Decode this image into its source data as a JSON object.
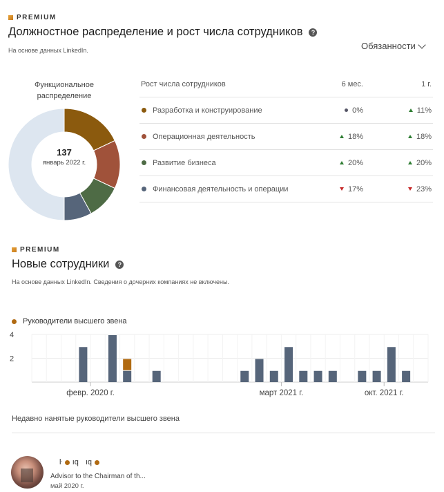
{
  "section1": {
    "premium_label": "PREMIUM",
    "title": "Должностное распределение и рост числа сотрудников",
    "subtitle": "На основе данных LinkedIn.",
    "dropdown_label": "Обязанности",
    "donut": {
      "title_line1": "Функциональное",
      "title_line2": "распределение",
      "center_value": "137",
      "center_label": "январь 2022 г."
    },
    "growth_table": {
      "headers": [
        "Рост числа сотрудников",
        "6 мес.",
        "1 г."
      ],
      "rows": [
        {
          "name": "Разработка и конструирование",
          "color": "#8b5a0e",
          "m6": "0%",
          "m6_trend": "neutral",
          "y1": "11%",
          "y1_trend": "up"
        },
        {
          "name": "Операционная деятельность",
          "color": "#a0523a",
          "m6": "18%",
          "m6_trend": "up",
          "y1": "18%",
          "y1_trend": "up"
        },
        {
          "name": "Развитие бизнеса",
          "color": "#4e6b45",
          "m6": "20%",
          "m6_trend": "up",
          "y1": "20%",
          "y1_trend": "up"
        },
        {
          "name": "Финансовая деятельность и операции",
          "color": "#56657a",
          "m6": "17%",
          "m6_trend": "down",
          "y1": "23%",
          "y1_trend": "down"
        }
      ]
    }
  },
  "section2": {
    "premium_label": "PREMIUM",
    "title": "Новые сотрудники",
    "subtitle": "На основе данных LinkedIn. Сведения о дочерних компаниях не включены.",
    "legend_label": "Руководители высшего звена",
    "recent_label": "Недавно нанятые руководители высшего звена",
    "person": {
      "name_fragments": [
        "ŀ",
        "ıq",
        "ıq"
      ],
      "role": "Advisor to the Chairman of th...",
      "date": "май 2020 г."
    }
  },
  "chart_data": [
    {
      "type": "pie",
      "title": "Функциональное распределение",
      "center_value": 137,
      "center_label": "январь 2022 г.",
      "slices": [
        {
          "label": "Разработка и конструирование",
          "value": 18,
          "color": "#8b5a0e"
        },
        {
          "label": "Операционная деятельность",
          "value": 14,
          "color": "#a0523a"
        },
        {
          "label": "Развитие бизнеса",
          "value": 10,
          "color": "#4e6b45"
        },
        {
          "label": "Финансовая деятельность и операции",
          "value": 8,
          "color": "#56657a"
        },
        {
          "label": "",
          "value": 50,
          "color": "#dde6f0"
        }
      ]
    },
    {
      "type": "bar",
      "stacked": true,
      "ylim": [
        0,
        4
      ],
      "yticks": [
        "2",
        "4"
      ],
      "x_tick_labels": [
        "февр. 2020 г.",
        "март 2021 г.",
        "окт. 2021 г."
      ],
      "legend": [
        "Руководители высшего звена"
      ],
      "grid": true,
      "series": [
        {
          "name": "",
          "color": "#56657a"
        },
        {
          "name": "Руководители высшего звена",
          "color": "#b06a12"
        }
      ],
      "bars": [
        {
          "index": 3,
          "values": [
            3,
            0
          ]
        },
        {
          "index": 5,
          "values": [
            4,
            0
          ]
        },
        {
          "index": 6,
          "values": [
            1,
            1
          ]
        },
        {
          "index": 8,
          "values": [
            1,
            0
          ]
        },
        {
          "index": 14,
          "values": [
            1,
            0
          ]
        },
        {
          "index": 15,
          "values": [
            2,
            0
          ]
        },
        {
          "index": 16,
          "values": [
            1,
            0
          ]
        },
        {
          "index": 17,
          "values": [
            3,
            0
          ]
        },
        {
          "index": 18,
          "values": [
            1,
            0
          ]
        },
        {
          "index": 19,
          "values": [
            1,
            0
          ]
        },
        {
          "index": 20,
          "values": [
            1,
            0
          ]
        },
        {
          "index": 22,
          "values": [
            1,
            0
          ]
        },
        {
          "index": 23,
          "values": [
            1,
            0
          ]
        },
        {
          "index": 24,
          "values": [
            3,
            0
          ]
        },
        {
          "index": 25,
          "values": [
            1,
            0
          ]
        }
      ],
      "tick_positions": [
        {
          "label": "февр. 2020 г.",
          "index": 4
        },
        {
          "label": "март 2021 г.",
          "index": 17
        },
        {
          "label": "окт. 2021 г.",
          "index": 24
        }
      ]
    }
  ],
  "colors": {
    "premium_icon": "#d98b26",
    "bar_default": "#56657a",
    "bar_exec": "#b06a12",
    "trend_up": "#2e7d32",
    "trend_down": "#c62828"
  }
}
